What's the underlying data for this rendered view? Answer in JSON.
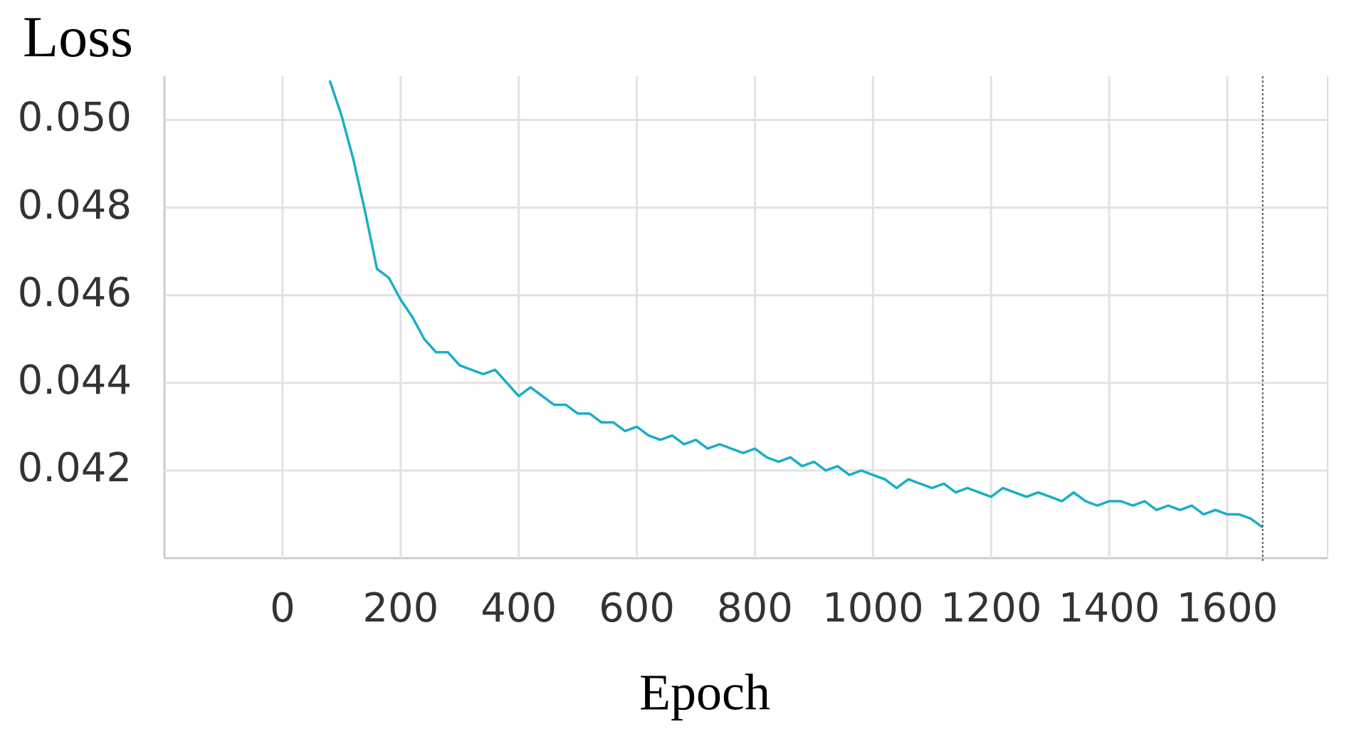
{
  "chart_data": {
    "type": "line",
    "y_label": "Loss",
    "x_label": "Epoch",
    "x": [
      80,
      100,
      120,
      140,
      160,
      180,
      200,
      220,
      240,
      260,
      280,
      300,
      320,
      340,
      360,
      380,
      400,
      420,
      440,
      460,
      480,
      500,
      520,
      540,
      560,
      580,
      600,
      620,
      640,
      660,
      680,
      700,
      720,
      740,
      760,
      780,
      800,
      820,
      840,
      860,
      880,
      900,
      920,
      940,
      960,
      980,
      1000,
      1020,
      1040,
      1060,
      1080,
      1100,
      1120,
      1140,
      1160,
      1180,
      1200,
      1220,
      1240,
      1260,
      1280,
      1300,
      1320,
      1340,
      1360,
      1380,
      1400,
      1420,
      1440,
      1460,
      1480,
      1500,
      1520,
      1540,
      1560,
      1580,
      1600,
      1620,
      1640,
      1660
    ],
    "series": [
      {
        "color": "#1aaec8",
        "values": [
          0.0509,
          0.0501,
          0.0491,
          0.0479,
          0.0466,
          0.0464,
          0.0459,
          0.0455,
          0.045,
          0.0447,
          0.0447,
          0.0444,
          0.0443,
          0.0442,
          0.0443,
          0.044,
          0.0437,
          0.0439,
          0.0437,
          0.0435,
          0.0435,
          0.0433,
          0.0433,
          0.0431,
          0.0431,
          0.0429,
          0.043,
          0.0428,
          0.0427,
          0.0428,
          0.0426,
          0.0427,
          0.0425,
          0.0426,
          0.0425,
          0.0424,
          0.0425,
          0.0423,
          0.0422,
          0.0423,
          0.0421,
          0.0422,
          0.042,
          0.0421,
          0.0419,
          0.042,
          0.0419,
          0.0418,
          0.0416,
          0.0418,
          0.0417,
          0.0416,
          0.0417,
          0.0415,
          0.0416,
          0.0415,
          0.0414,
          0.0416,
          0.0415,
          0.0414,
          0.0415,
          0.0414,
          0.0413,
          0.0415,
          0.0413,
          0.0412,
          0.0413,
          0.0413,
          0.0412,
          0.0413,
          0.0411,
          0.0412,
          0.0411,
          0.0412,
          0.041,
          0.0411,
          0.041,
          0.041,
          0.0409,
          0.0407
        ]
      }
    ],
    "xlim": [
      -200,
      1770
    ],
    "ylim": [
      0.04,
      0.051
    ],
    "xticks": [
      0,
      200,
      400,
      600,
      800,
      1000,
      1200,
      1400,
      1600
    ],
    "yticks": [
      {
        "value": 0.05,
        "label": "0.050"
      },
      0.048,
      0.046,
      0.044,
      0.042
    ],
    "grid": true
  }
}
